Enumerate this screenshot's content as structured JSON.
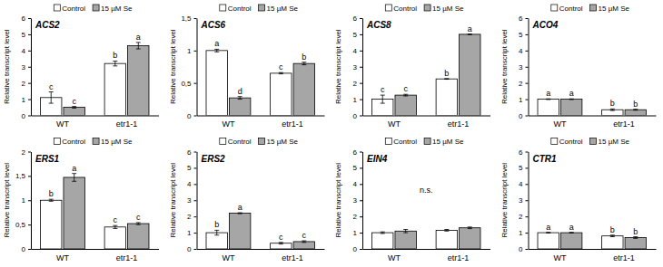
{
  "chart_data": [
    {
      "type": "bar",
      "title": "ACS2",
      "y_label": "Relative transcript level",
      "categories": [
        "WT",
        "etr1-1"
      ],
      "series": [
        {
          "name": "Control",
          "color": "#ffffff",
          "values": [
            1.1,
            3.2
          ],
          "errors": [
            0.35,
            0.15
          ],
          "letters": [
            "c",
            "b"
          ]
        },
        {
          "name": "15 µM Se",
          "color": "#a6a6a6",
          "values": [
            0.5,
            4.3
          ],
          "errors": [
            0.05,
            0.2
          ],
          "letters": [
            "c",
            "a"
          ]
        }
      ],
      "ylim": [
        0,
        6
      ],
      "yticks": [
        0,
        1,
        2,
        3,
        4,
        5,
        6
      ]
    },
    {
      "type": "bar",
      "title": "ACS6",
      "y_label": "Relative transcript level",
      "categories": [
        "WT",
        "etr1-1"
      ],
      "series": [
        {
          "name": "Control",
          "color": "#ffffff",
          "values": [
            1.0,
            0.65
          ],
          "errors": [
            0.02,
            0.01
          ],
          "letters": [
            "a",
            "c"
          ]
        },
        {
          "name": "15 µM Se",
          "color": "#a6a6a6",
          "values": [
            0.27,
            0.8
          ],
          "errors": [
            0.02,
            0.02
          ],
          "letters": [
            "d",
            "b"
          ]
        }
      ],
      "ylim": [
        0,
        1.5
      ],
      "yticks": [
        0,
        {
          "value": 0.5,
          "label": "0,5"
        },
        1,
        {
          "value": 1.5,
          "label": "1,5"
        }
      ]
    },
    {
      "type": "bar",
      "title": "ACS8",
      "y_label": "Relative transcript level",
      "categories": [
        "WT",
        "etr1-1"
      ],
      "series": [
        {
          "name": "Control",
          "color": "#ffffff",
          "values": [
            1.0,
            2.25
          ],
          "errors": [
            0.25,
            0.02
          ],
          "letters": [
            "c",
            "b"
          ]
        },
        {
          "name": "15 µM Se",
          "color": "#a6a6a6",
          "values": [
            1.25,
            5.0
          ],
          "errors": [
            0.05,
            0.02
          ],
          "letters": [
            "c",
            "a"
          ]
        }
      ],
      "ylim": [
        0,
        6
      ],
      "yticks": [
        0,
        1,
        2,
        3,
        4,
        5,
        6
      ]
    },
    {
      "type": "bar",
      "title": "ACO4",
      "y_label": "Relative transcript level",
      "categories": [
        "WT",
        "etr1-1"
      ],
      "series": [
        {
          "name": "Control",
          "color": "#ffffff",
          "values": [
            1.0,
            0.35
          ],
          "errors": [
            0.02,
            0.05
          ],
          "letters": [
            "a",
            "b"
          ]
        },
        {
          "name": "15 µM Se",
          "color": "#a6a6a6",
          "values": [
            1.0,
            0.35
          ],
          "errors": [
            0.02,
            0.03
          ],
          "letters": [
            "a",
            "b"
          ]
        }
      ],
      "ylim": [
        0,
        6
      ],
      "yticks": [
        0,
        1,
        2,
        3,
        4,
        5,
        6
      ]
    },
    {
      "type": "bar",
      "title": "ERS1",
      "y_label": "Relative transcript level",
      "categories": [
        "WT",
        "etr1-1"
      ],
      "series": [
        {
          "name": "Control",
          "color": "#ffffff",
          "values": [
            1.0,
            0.45
          ],
          "errors": [
            0.02,
            0.03
          ],
          "letters": [
            "b",
            "c"
          ]
        },
        {
          "name": "15 µM Se",
          "color": "#a6a6a6",
          "values": [
            1.47,
            0.52
          ],
          "errors": [
            0.08,
            0.02
          ],
          "letters": [
            "a",
            "c"
          ]
        }
      ],
      "ylim": [
        0,
        2
      ],
      "yticks": [
        0,
        {
          "value": 0.5,
          "label": "0,5"
        },
        1,
        {
          "value": 1.5,
          "label": "1,5"
        },
        2
      ]
    },
    {
      "type": "bar",
      "title": "ERS2",
      "y_label": "Relative transcript level",
      "categories": [
        "WT",
        "etr1-1"
      ],
      "series": [
        {
          "name": "Control",
          "color": "#ffffff",
          "values": [
            1.0,
            0.35
          ],
          "errors": [
            0.15,
            0.05
          ],
          "letters": [
            "b",
            "c"
          ]
        },
        {
          "name": "15 µM Se",
          "color": "#a6a6a6",
          "values": [
            2.2,
            0.45
          ],
          "errors": [
            0.03,
            0.05
          ],
          "letters": [
            "a",
            "c"
          ]
        }
      ],
      "ylim": [
        0,
        6
      ],
      "yticks": [
        0,
        1,
        2,
        3,
        4,
        5,
        6
      ]
    },
    {
      "type": "bar",
      "title": "EIN4",
      "y_label": "Relative transcript level",
      "categories": [
        "WT",
        "etr1-1"
      ],
      "annotation": "n.s.",
      "series": [
        {
          "name": "Control",
          "color": "#ffffff",
          "values": [
            1.0,
            1.15
          ],
          "errors": [
            0.05,
            0.05
          ]
        },
        {
          "name": "15 µM Se",
          "color": "#a6a6a6",
          "values": [
            1.1,
            1.3
          ],
          "errors": [
            0.1,
            0.05
          ]
        }
      ],
      "ylim": [
        0,
        6
      ],
      "yticks": [
        0,
        1,
        2,
        3,
        4,
        5,
        6
      ]
    },
    {
      "type": "bar",
      "title": "CTR1",
      "y_label": "Relative transcript level",
      "categories": [
        "WT",
        "etr1-1"
      ],
      "series": [
        {
          "name": "Control",
          "color": "#ffffff",
          "values": [
            1.0,
            0.8
          ],
          "errors": [
            0.02,
            0.05
          ],
          "letters": [
            "a",
            "b"
          ]
        },
        {
          "name": "15 µM Se",
          "color": "#a6a6a6",
          "values": [
            1.0,
            0.7
          ],
          "errors": [
            0.02,
            0.05
          ],
          "letters": [
            "a",
            "b"
          ]
        }
      ],
      "ylim": [
        0,
        6
      ],
      "yticks": [
        0,
        1,
        2,
        3,
        4,
        5,
        6
      ]
    }
  ]
}
